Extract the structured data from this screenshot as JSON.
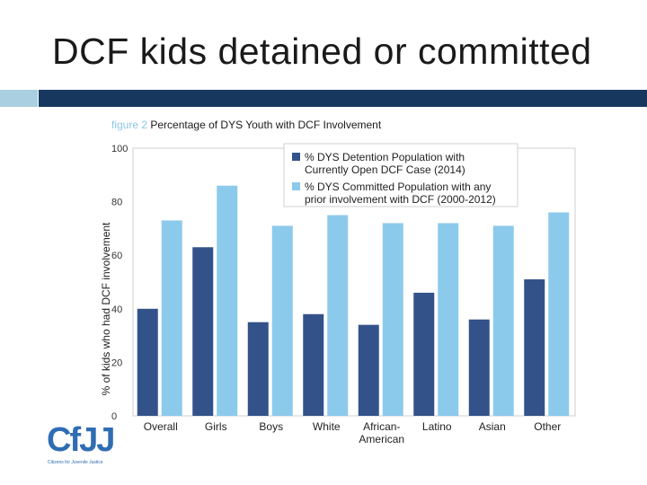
{
  "slide_title": "DCF kids detained or committed",
  "figure": {
    "prefix": "figure 2",
    "caption": "Percentage of DYS Youth with DCF Involvement"
  },
  "logo": {
    "text": "CfJJ",
    "tagline": "Citizens for Juvenile Justice"
  },
  "colors": {
    "accent_light": "#a9cfe0",
    "accent_dark": "#17375e",
    "series_dark": "#34528a",
    "series_light": "#8ccaec"
  },
  "chart_data": {
    "type": "bar",
    "title": "Percentage of DYS Youth with DCF Involvement",
    "ylabel": "% of kids who had DCF involvement",
    "xlabel": "",
    "ylim": [
      0,
      100
    ],
    "yticks": [
      0,
      20,
      40,
      60,
      80,
      100
    ],
    "grid": false,
    "legend_position": "top-right",
    "categories": [
      "Overall",
      "Girls",
      "Boys",
      "White",
      "African-\nAmerican",
      "Latino",
      "Asian",
      "Other"
    ],
    "series": [
      {
        "name": "% DYS Detention Population with Currently Open DCF Case (2014)",
        "legend_lines": [
          "% DYS Detention Population with",
          "Currently Open DCF Case (2014)"
        ],
        "color": "#34528a",
        "values": [
          40,
          63,
          35,
          38,
          34,
          46,
          36,
          51
        ]
      },
      {
        "name": "% DYS Committed Population with any prior involvement with DCF (2000-2012)",
        "legend_lines": [
          "% DYS Committed Population with any",
          "prior involvement with DCF (2000-2012)"
        ],
        "color": "#8ccaec",
        "values": [
          73,
          86,
          71,
          75,
          72,
          72,
          71,
          76
        ]
      }
    ]
  }
}
